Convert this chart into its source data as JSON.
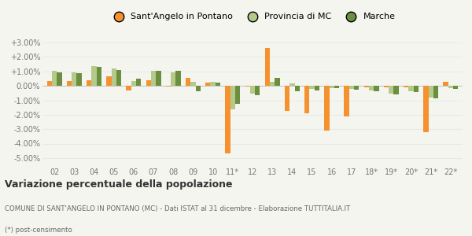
{
  "years": [
    "02",
    "03",
    "04",
    "05",
    "06",
    "07",
    "08",
    "09",
    "10",
    "11*",
    "12",
    "13",
    "14",
    "15",
    "16",
    "17",
    "18*",
    "19*",
    "20*",
    "21*",
    "22*"
  ],
  "sant_angelo": [
    0.35,
    0.35,
    0.4,
    0.65,
    -0.3,
    0.4,
    -0.05,
    0.55,
    0.2,
    -4.7,
    -0.05,
    2.65,
    -1.75,
    -1.9,
    -3.1,
    -2.1,
    -0.1,
    -0.1,
    -0.1,
    -3.2,
    0.3
  ],
  "provincia_mc": [
    1.05,
    0.95,
    1.35,
    1.2,
    0.35,
    1.05,
    0.95,
    0.3,
    0.3,
    -1.65,
    -0.55,
    0.3,
    0.15,
    -0.2,
    -0.15,
    -0.2,
    -0.3,
    -0.55,
    -0.35,
    -0.8,
    -0.15
  ],
  "marche": [
    0.95,
    0.9,
    1.3,
    1.1,
    0.5,
    1.05,
    1.05,
    -0.35,
    0.25,
    -1.25,
    -0.65,
    0.55,
    -0.35,
    -0.3,
    -0.15,
    -0.25,
    -0.4,
    -0.6,
    -0.45,
    -0.85,
    -0.2
  ],
  "color_sant_angelo": "#f5922f",
  "color_provincia": "#b5c98a",
  "color_marche": "#6b8f3e",
  "title": "Variazione percentuale della popolazione",
  "subtitle": "COMUNE DI SANT'ANGELO IN PONTANO (MC) - Dati ISTAT al 31 dicembre - Elaborazione TUTTITALIA.IT",
  "footnote": "(*) post-censimento",
  "legend_labels": [
    "Sant'Angelo in Pontano",
    "Provincia di MC",
    "Marche"
  ],
  "ylim": [
    -5.5,
    3.5
  ],
  "yticks": [
    -5.0,
    -4.0,
    -3.0,
    -2.0,
    -1.0,
    0.0,
    1.0,
    2.0,
    3.0
  ],
  "ytick_labels": [
    "-5.00%",
    "-4.00%",
    "-3.00%",
    "-2.00%",
    "-1.00%",
    "0.00%",
    "+1.00%",
    "+2.00%",
    "+3.00%"
  ],
  "background_color": "#f5f5f0",
  "grid_color": "#e8e8e8"
}
